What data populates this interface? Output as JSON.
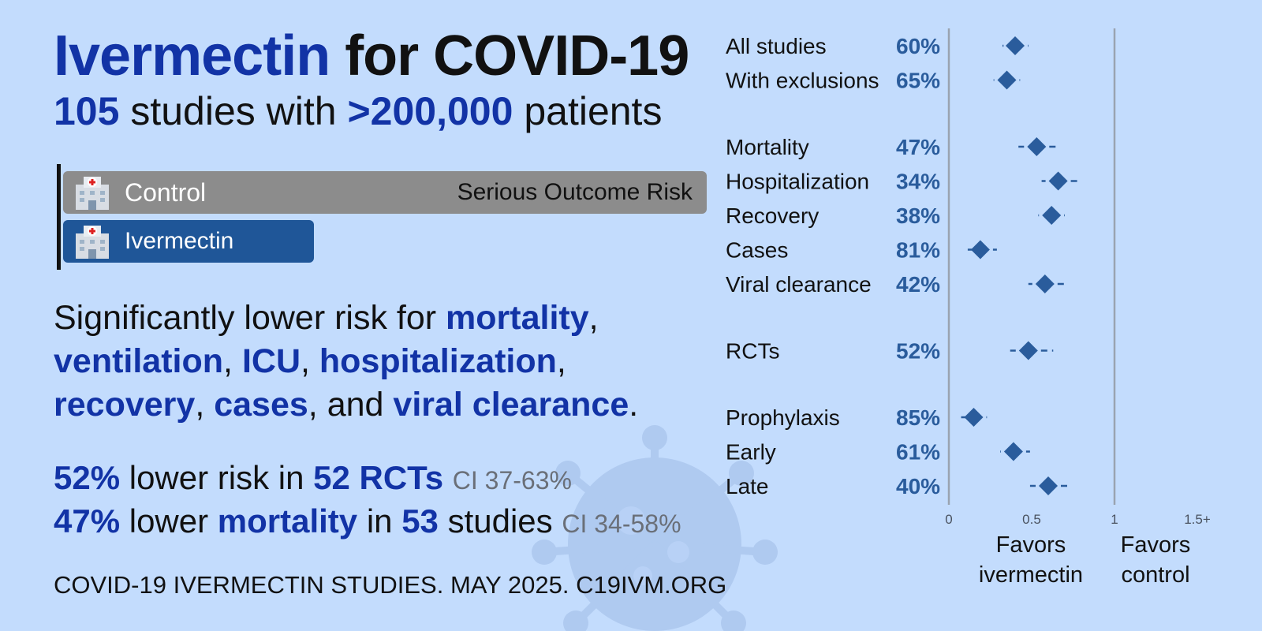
{
  "title": {
    "prefix": "Ivermectin",
    "rest": "for COVID-19"
  },
  "subtitle": {
    "count": "105",
    "mid": "studies with",
    "patients": ">200,000",
    "suffix": "patients"
  },
  "bars": {
    "control_label": "Control",
    "outcome_label": "Serious Outcome Risk",
    "ivermectin_label": "Ivermectin",
    "icon": "hospital-icon",
    "control_color": "#8c8c8c",
    "ivermectin_color": "#1f5698",
    "ivermectin_risk_fraction": 0.39
  },
  "claim": {
    "lead": "Significantly lower risk for",
    "items": [
      "mortality",
      "ventilation",
      "ICU",
      "hospitalization",
      "recovery",
      "cases"
    ],
    "and": "and",
    "last": "viral clearance"
  },
  "stats": [
    {
      "pct": "52%",
      "text1": "lower risk in",
      "n": "52 RCTs",
      "ci": "CI 37-63%"
    },
    {
      "pct": "47%",
      "text1": "lower",
      "bold": "mortality",
      "text2": "in",
      "n": "53",
      "text3": "studies",
      "ci": "CI 34-58%"
    }
  ],
  "footer": "COVID-19 IVERMECTIN STUDIES. MAY 2025. C19IVM.ORG",
  "colors": {
    "accent": "#1233a6",
    "marker": "#2a5c9c",
    "background": "#c3dcfd"
  },
  "chart_data": {
    "type": "scatter",
    "xlim": [
      0,
      1.5
    ],
    "x_ticks": [
      "0",
      "0.5",
      "1",
      "1.5+"
    ],
    "x_tick_values": [
      0,
      0.5,
      1,
      1.5
    ],
    "favors_left": [
      "Favors",
      "ivermectin"
    ],
    "favors_right": [
      "Favors",
      "control"
    ],
    "groups": [
      {
        "items": [
          {
            "label": "All studies",
            "pct": "60%",
            "rr": 0.4,
            "lo": 0.33,
            "hi": 0.48
          },
          {
            "label": "With exclusions",
            "pct": "65%",
            "rr": 0.35,
            "lo": 0.27,
            "hi": 0.43
          }
        ]
      },
      {
        "items": [
          {
            "label": "Mortality",
            "pct": "47%",
            "rr": 0.53,
            "lo": 0.42,
            "hi": 0.66
          },
          {
            "label": "Hospitalization",
            "pct": "34%",
            "rr": 0.66,
            "lo": 0.56,
            "hi": 0.78
          },
          {
            "label": "Recovery",
            "pct": "38%",
            "rr": 0.62,
            "lo": 0.54,
            "hi": 0.7
          },
          {
            "label": "Cases",
            "pct": "81%",
            "rr": 0.19,
            "lo": 0.14,
            "hi": 0.29
          },
          {
            "label": "Viral clearance",
            "pct": "42%",
            "rr": 0.58,
            "lo": 0.48,
            "hi": 0.7
          }
        ]
      },
      {
        "items": [
          {
            "label": "RCTs",
            "pct": "52%",
            "rr": 0.48,
            "lo": 0.37,
            "hi": 0.63
          }
        ]
      },
      {
        "items": [
          {
            "label": "Prophylaxis",
            "pct": "85%",
            "rr": 0.15,
            "lo": 0.1,
            "hi": 0.23
          },
          {
            "label": "Early",
            "pct": "61%",
            "rr": 0.39,
            "lo": 0.31,
            "hi": 0.49
          },
          {
            "label": "Late",
            "pct": "40%",
            "rr": 0.6,
            "lo": 0.49,
            "hi": 0.73
          }
        ]
      }
    ]
  }
}
